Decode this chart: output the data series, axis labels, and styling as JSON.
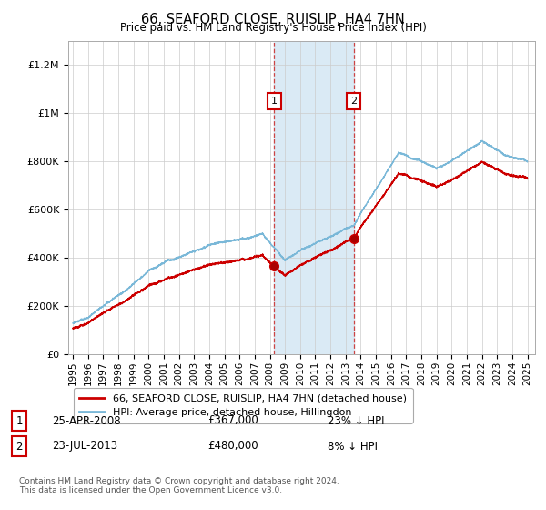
{
  "title": "66, SEAFORD CLOSE, RUISLIP, HA4 7HN",
  "subtitle": "Price paid vs. HM Land Registry's House Price Index (HPI)",
  "ylim": [
    0,
    1300000
  ],
  "yticks": [
    0,
    200000,
    400000,
    600000,
    800000,
    1000000,
    1200000
  ],
  "ytick_labels": [
    "£0",
    "£200K",
    "£400K",
    "£600K",
    "£800K",
    "£1M",
    "£1.2M"
  ],
  "legend_line1": "66, SEAFORD CLOSE, RUISLIP, HA4 7HN (detached house)",
  "legend_line2": "HPI: Average price, detached house, Hillingdon",
  "annotation1_num": "1",
  "annotation1_date": "25-APR-2008",
  "annotation1_price": "£367,000",
  "annotation1_hpi": "23% ↓ HPI",
  "annotation2_num": "2",
  "annotation2_date": "23-JUL-2013",
  "annotation2_price": "£480,000",
  "annotation2_hpi": "8% ↓ HPI",
  "footer": "Contains HM Land Registry data © Crown copyright and database right 2024.\nThis data is licensed under the Open Government Licence v3.0.",
  "hpi_color": "#7ab8d8",
  "price_color": "#cc0000",
  "shade_color": "#daeaf5",
  "annotation_box_color": "#cc0000",
  "background_color": "#ffffff",
  "sale1_year": 2008.29,
  "sale1_price": 367000,
  "sale2_year": 2013.54,
  "sale2_price": 480000
}
